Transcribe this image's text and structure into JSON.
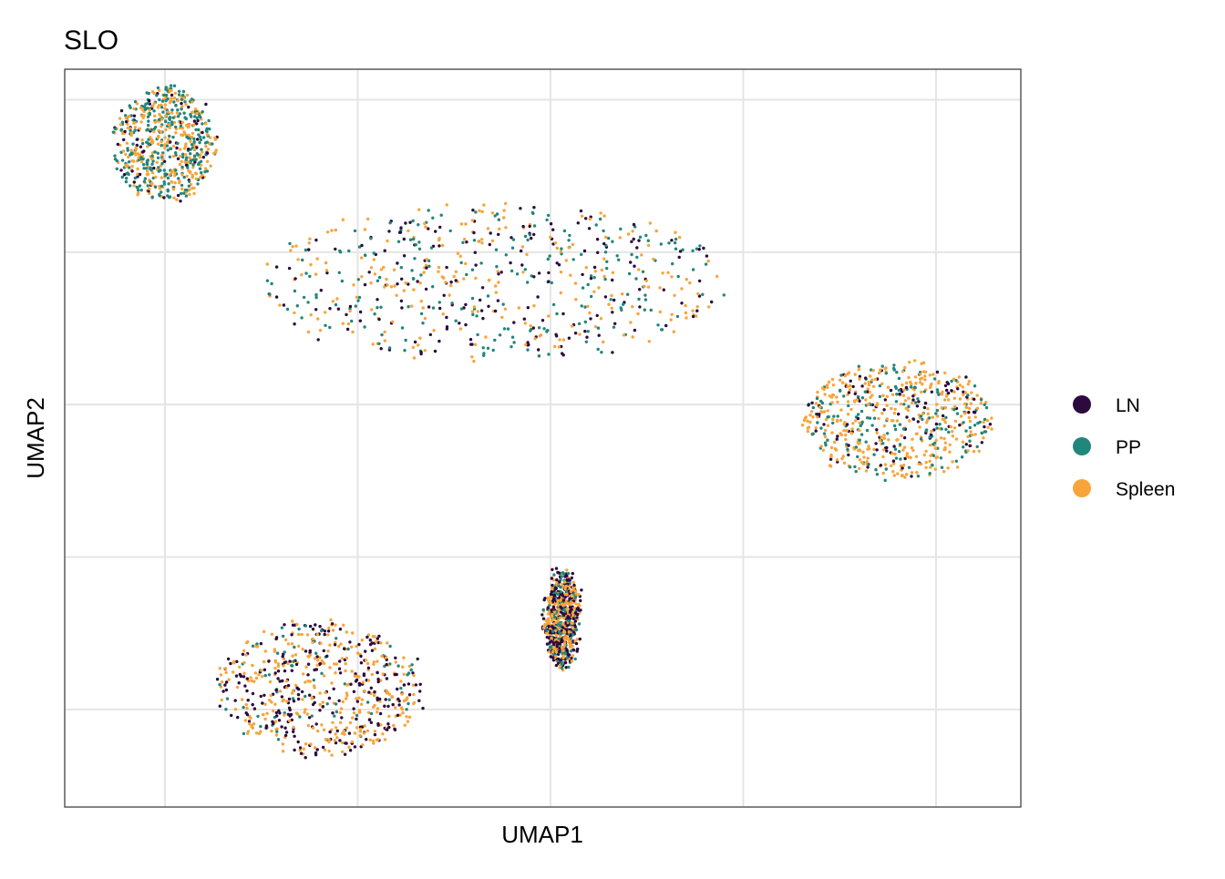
{
  "chart_data": {
    "type": "scatter",
    "title": "SLO",
    "xlabel": "UMAP1",
    "ylabel": "UMAP2",
    "xlim": [
      -2.6,
      22.2
    ],
    "ylim": [
      -5.7,
      18.5
    ],
    "x_gridlines": [
      0,
      5,
      10,
      15,
      20
    ],
    "y_gridlines": [
      -2.5,
      2.5,
      7.5,
      12.5,
      17.5
    ],
    "tick_labels_visible": false,
    "grid": true,
    "legend_position": "right",
    "series": [
      {
        "name": "LN",
        "color": "#2c0a3e"
      },
      {
        "name": "PP",
        "color": "#21867c"
      },
      {
        "name": "Spleen",
        "color": "#f9a43a"
      }
    ],
    "clusters": [
      {
        "cx": 0.0,
        "cy": 16.0,
        "rx": 1.3,
        "ry": 1.9,
        "weights": [
          0.1,
          0.45,
          0.45
        ]
      },
      {
        "cx": 8.5,
        "cy": 11.5,
        "rx": 6.0,
        "ry": 2.6,
        "weights": [
          0.33,
          0.34,
          0.33
        ]
      },
      {
        "cx": 19.0,
        "cy": 7.0,
        "rx": 2.4,
        "ry": 1.9,
        "weights": [
          0.15,
          0.25,
          0.6
        ]
      },
      {
        "cx": 10.3,
        "cy": 0.5,
        "rx": 0.4,
        "ry": 1.6,
        "weights": [
          0.4,
          0.2,
          0.4
        ]
      },
      {
        "cx": 4.0,
        "cy": -1.8,
        "rx": 2.6,
        "ry": 2.2,
        "weights": [
          0.4,
          0.1,
          0.5
        ]
      }
    ]
  }
}
